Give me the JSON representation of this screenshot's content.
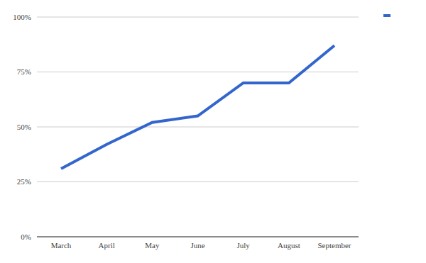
{
  "chart_data": {
    "type": "line",
    "categories": [
      "March",
      "April",
      "May",
      "June",
      "July",
      "August",
      "September"
    ],
    "values": [
      31,
      42,
      52,
      55,
      70,
      70,
      87
    ],
    "color": "#3366cc",
    "ylim": [
      0,
      100
    ],
    "yticks": [
      {
        "value": 0,
        "label": "0%"
      },
      {
        "value": 25,
        "label": "25%"
      },
      {
        "value": 50,
        "label": "50%"
      },
      {
        "value": 75,
        "label": "75%"
      },
      {
        "value": 100,
        "label": "100%"
      }
    ],
    "grid": true,
    "legend": "top-right"
  }
}
